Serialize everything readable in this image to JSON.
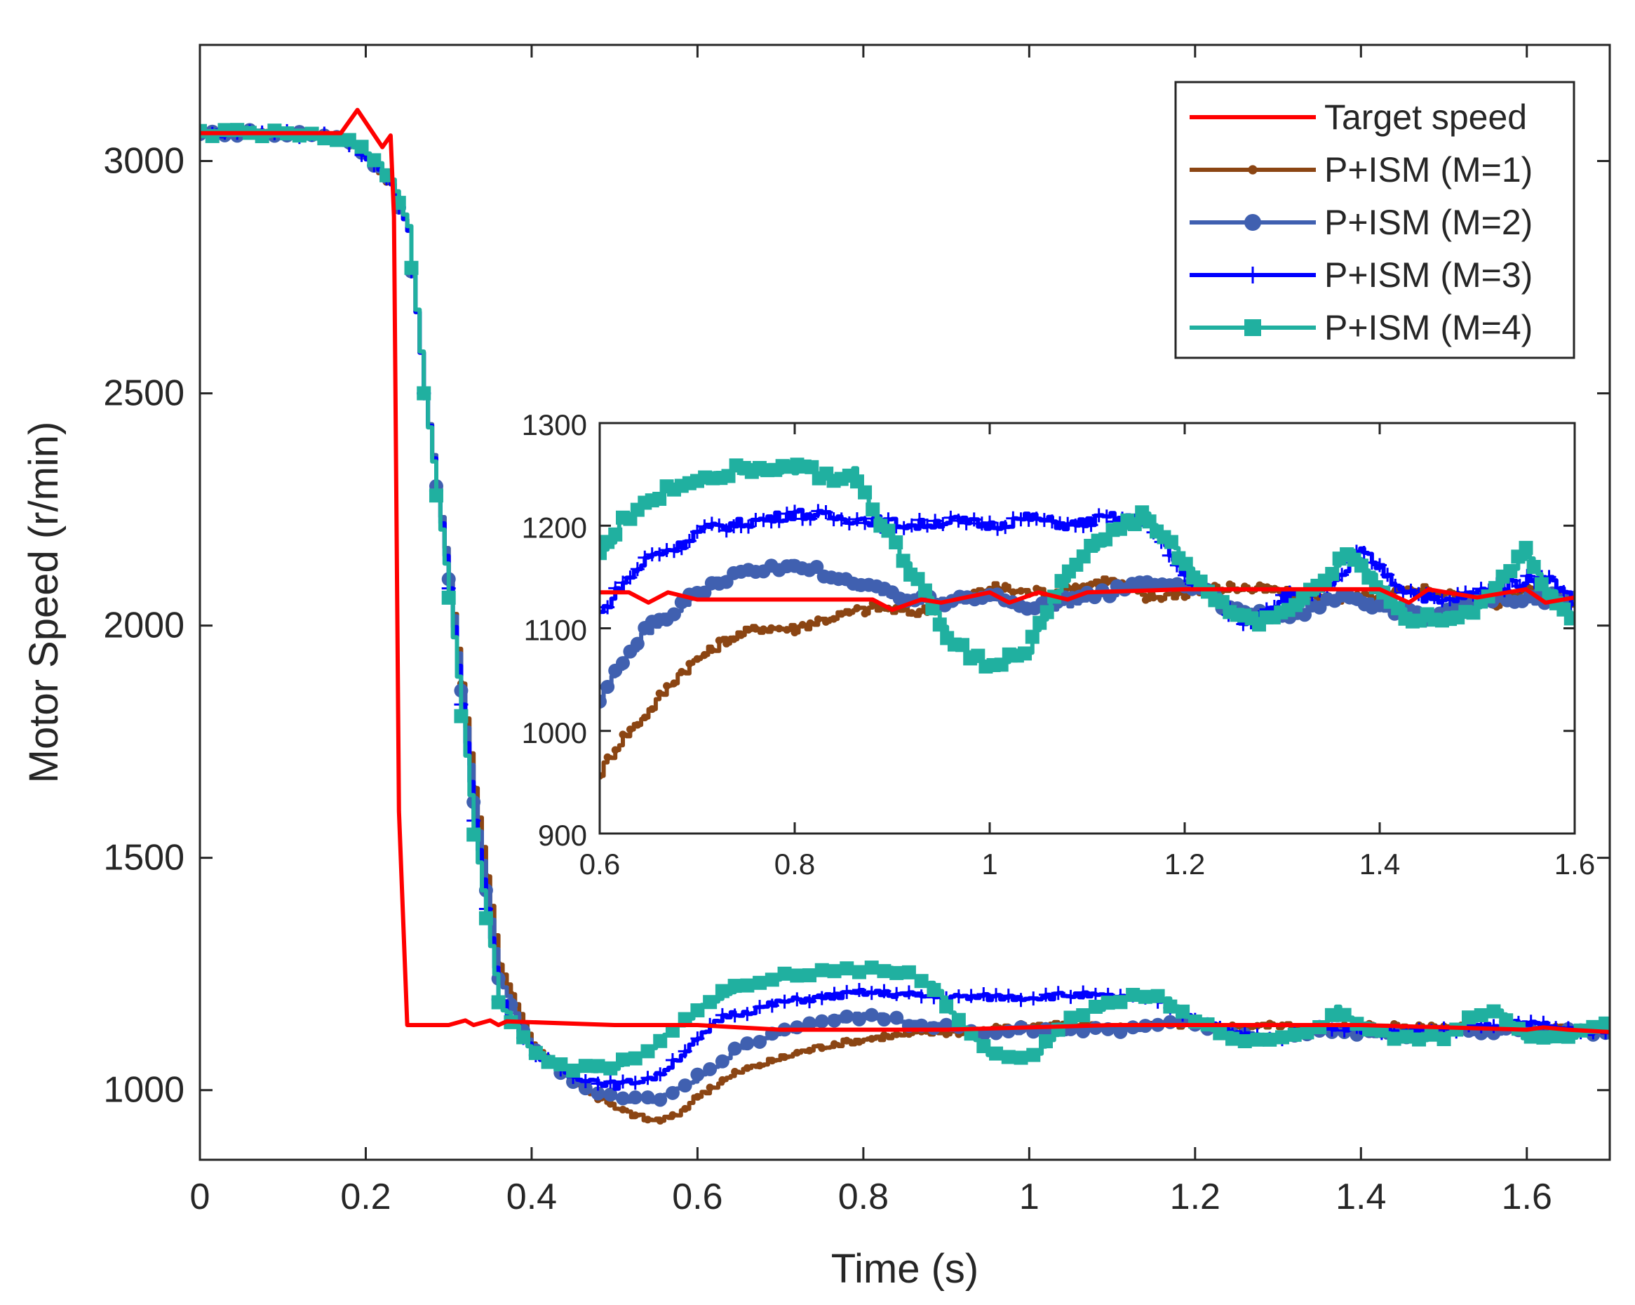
{
  "chart_data": [
    {
      "type": "line",
      "id": "main",
      "xlabel": "Time (s)",
      "ylabel": "Motor Speed (r/min)",
      "xlim": [
        0,
        1.7
      ],
      "ylim": [
        850,
        3250
      ],
      "xticks": [
        0,
        0.2,
        0.4,
        0.6,
        0.8,
        1,
        1.2,
        1.4,
        1.6
      ],
      "xtick_labels": [
        "0",
        "0.2",
        "0.4",
        "0.6",
        "0.8",
        "1",
        "1.2",
        "1.4",
        "1.6"
      ],
      "yticks": [
        1000,
        1500,
        2000,
        2500,
        3000
      ],
      "ytick_labels": [
        "1000",
        "1500",
        "2000",
        "2500",
        "3000"
      ],
      "grid": false,
      "legend_position": "top-right",
      "legend": [
        "Target speed",
        "P+ISM (M=1)",
        "P+ISM (M=2)",
        "P+ISM (M=3)",
        "P+ISM (M=4)"
      ],
      "series": [
        {
          "name": "Target speed",
          "color": "#ff0000",
          "marker": "none",
          "x": [
            0,
            0.17,
            0.19,
            0.22,
            0.23,
            0.234,
            0.24,
            0.25,
            0.3,
            0.32,
            0.33,
            0.35,
            0.36,
            0.37,
            0.5,
            0.6,
            0.7,
            0.9,
            1.1,
            1.2,
            1.4,
            1.6,
            1.62,
            1.65,
            1.7
          ],
          "y": [
            3060,
            3060,
            3110,
            3030,
            3055,
            2880,
            1600,
            1140,
            1140,
            1150,
            1140,
            1150,
            1140,
            1148,
            1140,
            1140,
            1130,
            1130,
            1140,
            1140,
            1140,
            1130,
            1135,
            1130,
            1125
          ]
        },
        {
          "name": "P+ISM (M=1)",
          "color": "#8b4513",
          "marker": "dot",
          "x": [
            0,
            0.1,
            0.17,
            0.2,
            0.23,
            0.25,
            0.27,
            0.3,
            0.33,
            0.36,
            0.4,
            0.45,
            0.5,
            0.54,
            0.57,
            0.6,
            0.65,
            0.7,
            0.75,
            0.8,
            0.85,
            0.9,
            0.95,
            1.0,
            1.05,
            1.1,
            1.15,
            1.2,
            1.25,
            1.3,
            1.35,
            1.4,
            1.45,
            1.5,
            1.55,
            1.6,
            1.65,
            1.7
          ],
          "y": [
            3060,
            3060,
            3050,
            3010,
            2950,
            2850,
            2500,
            2100,
            1650,
            1270,
            1100,
            1020,
            960,
            935,
            940,
            990,
            1040,
            1070,
            1095,
            1110,
            1120,
            1125,
            1130,
            1140,
            1140,
            1135,
            1140,
            1140,
            1135,
            1140,
            1130,
            1140,
            1135,
            1140,
            1130,
            1130,
            1135,
            1130
          ]
        },
        {
          "name": "P+ISM (M=2)",
          "color": "#4060b0",
          "marker": "circle",
          "x": [
            0,
            0.1,
            0.17,
            0.2,
            0.23,
            0.25,
            0.27,
            0.3,
            0.33,
            0.36,
            0.4,
            0.45,
            0.5,
            0.55,
            0.6,
            0.65,
            0.7,
            0.75,
            0.8,
            0.83,
            0.86,
            0.9,
            0.95,
            1.0,
            1.05,
            1.1,
            1.15,
            1.2,
            1.25,
            1.3,
            1.35,
            1.4,
            1.45,
            1.5,
            1.55,
            1.6,
            1.65,
            1.7
          ],
          "y": [
            3060,
            3060,
            3050,
            3010,
            2950,
            2850,
            2500,
            2100,
            1620,
            1240,
            1090,
            1020,
            980,
            980,
            1030,
            1090,
            1125,
            1150,
            1160,
            1155,
            1140,
            1135,
            1125,
            1130,
            1125,
            1130,
            1140,
            1145,
            1120,
            1110,
            1130,
            1125,
            1115,
            1130,
            1125,
            1135,
            1125,
            1120
          ]
        },
        {
          "name": "P+ISM (M=3)",
          "color": "#0000ff",
          "marker": "plus",
          "x": [
            0,
            0.1,
            0.17,
            0.2,
            0.23,
            0.25,
            0.27,
            0.3,
            0.33,
            0.36,
            0.4,
            0.45,
            0.5,
            0.55,
            0.6,
            0.63,
            0.66,
            0.7,
            0.75,
            0.8,
            0.85,
            0.9,
            0.95,
            1.0,
            1.05,
            1.1,
            1.15,
            1.2,
            1.25,
            1.3,
            1.35,
            1.4,
            1.45,
            1.5,
            1.55,
            1.6,
            1.65,
            1.7
          ],
          "y": [
            3060,
            3060,
            3050,
            3010,
            2950,
            2850,
            2500,
            2080,
            1580,
            1200,
            1080,
            1030,
            1010,
            1030,
            1110,
            1160,
            1170,
            1190,
            1200,
            1210,
            1205,
            1200,
            1200,
            1200,
            1205,
            1200,
            1200,
            1150,
            1120,
            1110,
            1140,
            1130,
            1125,
            1130,
            1140,
            1145,
            1130,
            1125
          ]
        },
        {
          "name": "P+ISM (M=4)",
          "color": "#20b0a0",
          "marker": "square",
          "x": [
            0,
            0.1,
            0.17,
            0.2,
            0.23,
            0.25,
            0.27,
            0.3,
            0.33,
            0.36,
            0.4,
            0.45,
            0.5,
            0.55,
            0.6,
            0.63,
            0.66,
            0.7,
            0.75,
            0.8,
            0.85,
            0.88,
            0.91,
            0.95,
            1.0,
            1.05,
            1.1,
            1.15,
            1.2,
            1.25,
            1.3,
            1.35,
            1.37,
            1.4,
            1.45,
            1.5,
            1.53,
            1.56,
            1.6,
            1.65,
            1.7
          ],
          "y": [
            3060,
            3060,
            3050,
            3020,
            2960,
            2860,
            2500,
            2060,
            1550,
            1190,
            1080,
            1045,
            1050,
            1100,
            1170,
            1210,
            1230,
            1245,
            1255,
            1260,
            1255,
            1230,
            1160,
            1080,
            1065,
            1150,
            1190,
            1210,
            1150,
            1110,
            1110,
            1140,
            1175,
            1140,
            1110,
            1115,
            1150,
            1175,
            1110,
            1110,
            1150
          ]
        }
      ]
    },
    {
      "type": "line",
      "id": "inset",
      "xlim": [
        0.6,
        1.6
      ],
      "ylim": [
        900,
        1300
      ],
      "xticks": [
        0.6,
        0.8,
        1,
        1.2,
        1.4,
        1.6
      ],
      "xtick_labels": [
        "0.6",
        "0.8",
        "1",
        "1.2",
        "1.4",
        "1.6"
      ],
      "yticks": [
        900,
        1000,
        1100,
        1200,
        1300
      ],
      "ytick_labels": [
        "900",
        "1000",
        "1100",
        "1200",
        "1300"
      ],
      "grid": false,
      "series": [
        {
          "name": "Target speed",
          "color": "#ff0000",
          "x": [
            0.6,
            0.63,
            0.65,
            0.67,
            0.7,
            0.88,
            0.9,
            0.93,
            0.95,
            1.0,
            1.02,
            1.05,
            1.08,
            1.1,
            1.2,
            1.3,
            1.4,
            1.43,
            1.45,
            1.5,
            1.55,
            1.57,
            1.6
          ],
          "y": [
            1135,
            1135,
            1125,
            1135,
            1128,
            1128,
            1118,
            1128,
            1125,
            1135,
            1125,
            1135,
            1128,
            1135,
            1138,
            1138,
            1138,
            1125,
            1138,
            1130,
            1138,
            1125,
            1130
          ]
        },
        {
          "name": "P+ISM (M=1)",
          "color": "#8b4513",
          "x": [
            0.6,
            0.62,
            0.65,
            0.68,
            0.7,
            0.73,
            0.76,
            0.8,
            0.84,
            0.88,
            0.92,
            0.96,
            1.0,
            1.04,
            1.08,
            1.12,
            1.16,
            1.2,
            1.25,
            1.3,
            1.35,
            1.4,
            1.44,
            1.48,
            1.52,
            1.56,
            1.6
          ],
          "y": [
            960,
            990,
            1020,
            1055,
            1070,
            1090,
            1100,
            1100,
            1112,
            1120,
            1115,
            1125,
            1140,
            1135,
            1138,
            1148,
            1130,
            1135,
            1140,
            1135,
            1128,
            1130,
            1140,
            1130,
            1125,
            1140,
            1125
          ]
        },
        {
          "name": "P+ISM (M=2)",
          "color": "#4060b0",
          "x": [
            0.6,
            0.62,
            0.65,
            0.68,
            0.7,
            0.73,
            0.76,
            0.8,
            0.83,
            0.86,
            0.9,
            0.95,
            1.0,
            1.05,
            1.1,
            1.15,
            1.2,
            1.25,
            1.3,
            1.35,
            1.4,
            1.45,
            1.5,
            1.55,
            1.6
          ],
          "y": [
            1030,
            1065,
            1100,
            1120,
            1135,
            1150,
            1155,
            1162,
            1155,
            1142,
            1135,
            1125,
            1130,
            1120,
            1130,
            1140,
            1145,
            1118,
            1108,
            1130,
            1122,
            1112,
            1130,
            1128,
            1130
          ]
        },
        {
          "name": "P+ISM (M=3)",
          "color": "#0000ff",
          "x": [
            0.6,
            0.62,
            0.65,
            0.68,
            0.7,
            0.73,
            0.76,
            0.8,
            0.84,
            0.88,
            0.92,
            0.96,
            1.0,
            1.04,
            1.08,
            1.12,
            1.16,
            1.2,
            1.23,
            1.26,
            1.3,
            1.35,
            1.38,
            1.42,
            1.46,
            1.5,
            1.54,
            1.57,
            1.6
          ],
          "y": [
            1115,
            1140,
            1170,
            1180,
            1195,
            1200,
            1205,
            1212,
            1208,
            1205,
            1200,
            1205,
            1200,
            1208,
            1200,
            1208,
            1205,
            1150,
            1130,
            1105,
            1130,
            1140,
            1175,
            1140,
            1125,
            1135,
            1145,
            1150,
            1125
          ]
        },
        {
          "name": "P+ISM (M=4)",
          "color": "#20b0a0",
          "x": [
            0.6,
            0.62,
            0.65,
            0.68,
            0.7,
            0.74,
            0.78,
            0.81,
            0.84,
            0.86,
            0.88,
            0.9,
            0.93,
            0.96,
            1.0,
            1.02,
            1.04,
            1.07,
            1.1,
            1.13,
            1.16,
            1.19,
            1.22,
            1.25,
            1.28,
            1.31,
            1.34,
            1.37,
            1.4,
            1.43,
            1.46,
            1.5,
            1.53,
            1.55,
            1.57,
            1.6
          ],
          "y": [
            1170,
            1200,
            1225,
            1240,
            1245,
            1255,
            1255,
            1255,
            1245,
            1252,
            1215,
            1185,
            1140,
            1085,
            1065,
            1070,
            1080,
            1140,
            1175,
            1195,
            1210,
            1175,
            1140,
            1115,
            1105,
            1115,
            1145,
            1175,
            1140,
            1110,
            1110,
            1120,
            1155,
            1175,
            1140,
            1105
          ]
        }
      ]
    }
  ]
}
